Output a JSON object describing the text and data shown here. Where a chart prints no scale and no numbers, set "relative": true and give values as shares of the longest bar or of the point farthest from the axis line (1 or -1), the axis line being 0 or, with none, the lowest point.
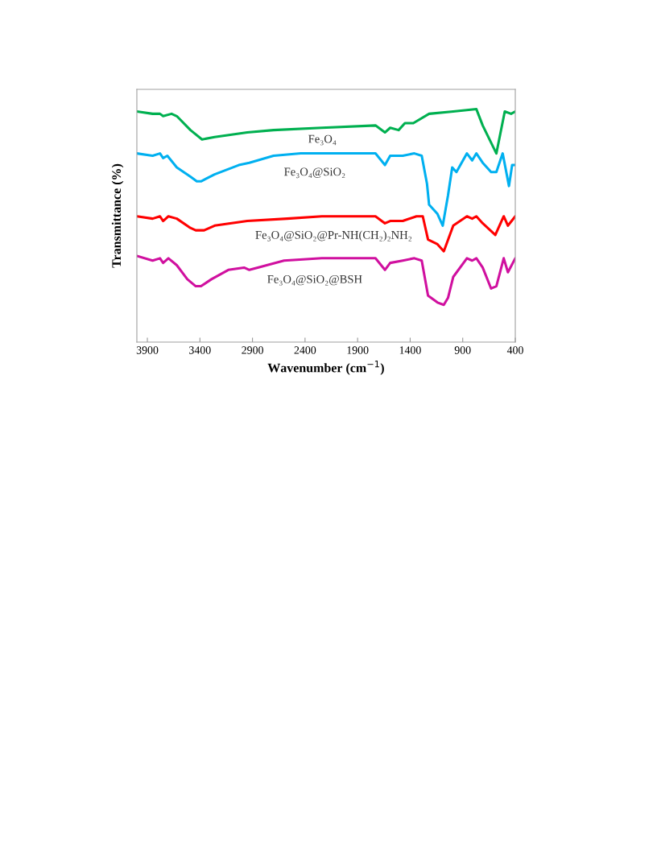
{
  "chart_data": {
    "type": "line",
    "relative": true,
    "xlabel": "Wavenumber (cm$^{−1}$)",
    "ylabel": "Transmittance (%)",
    "xlim": [
      4000,
      400
    ],
    "xticks": [
      3900,
      3400,
      2900,
      2400,
      1900,
      1400,
      900,
      400
    ],
    "grid": false,
    "legend": false,
    "marker": "none",
    "line_style": "solid",
    "series": [
      {
        "name": "Fe₃O₄",
        "color": "#00b050",
        "x": [
          4000,
          3850,
          3780,
          3750,
          3670,
          3620,
          3490,
          3380,
          3260,
          2950,
          2700,
          2240,
          1730,
          1640,
          1590,
          1510,
          1450,
          1370,
          1220,
          990,
          770,
          710,
          580,
          500,
          440,
          400
        ],
        "values": [
          0.99,
          0.98,
          0.98,
          0.97,
          0.98,
          0.97,
          0.91,
          0.87,
          0.88,
          0.9,
          0.91,
          0.92,
          0.93,
          0.9,
          0.92,
          0.91,
          0.94,
          0.94,
          0.98,
          0.99,
          1.0,
          0.93,
          0.81,
          0.99,
          0.98,
          0.99
        ]
      },
      {
        "name": "Fe₃O₄@SiO₂",
        "color": "#00b0f0",
        "x": [
          4000,
          3850,
          3780,
          3750,
          3710,
          3620,
          3490,
          3430,
          3390,
          3260,
          3030,
          2930,
          2700,
          2440,
          2240,
          1730,
          1640,
          1590,
          1470,
          1360,
          1290,
          1240,
          1220,
          1140,
          1090,
          1040,
          1000,
          960,
          860,
          810,
          770,
          710,
          630,
          580,
          520,
          460,
          430,
          400
        ],
        "values": [
          0.81,
          0.8,
          0.81,
          0.79,
          0.8,
          0.75,
          0.71,
          0.69,
          0.69,
          0.72,
          0.76,
          0.77,
          0.8,
          0.81,
          0.81,
          0.81,
          0.76,
          0.8,
          0.8,
          0.81,
          0.8,
          0.68,
          0.59,
          0.55,
          0.5,
          0.63,
          0.75,
          0.73,
          0.81,
          0.78,
          0.81,
          0.77,
          0.73,
          0.73,
          0.81,
          0.67,
          0.76,
          0.76
        ]
      },
      {
        "name": "Fe₃O₄@SiO₂@Pr-NH(CH₂)₂NH₂",
        "color": "#ff0000",
        "x": [
          4000,
          3850,
          3780,
          3750,
          3700,
          3620,
          3490,
          3440,
          3360,
          3260,
          2950,
          2570,
          2240,
          1730,
          1640,
          1590,
          1470,
          1340,
          1280,
          1230,
          1140,
          1080,
          990,
          860,
          810,
          770,
          710,
          590,
          510,
          470,
          400
        ],
        "values": [
          0.54,
          0.53,
          0.54,
          0.52,
          0.54,
          0.53,
          0.49,
          0.48,
          0.48,
          0.5,
          0.52,
          0.53,
          0.54,
          0.54,
          0.51,
          0.52,
          0.52,
          0.54,
          0.54,
          0.44,
          0.42,
          0.39,
          0.5,
          0.54,
          0.53,
          0.54,
          0.51,
          0.46,
          0.54,
          0.5,
          0.54
        ]
      },
      {
        "name": "Fe₃O₄@SiO₂@BSH",
        "color": "#d0109f",
        "x": [
          4000,
          3850,
          3780,
          3750,
          3700,
          3620,
          3520,
          3440,
          3390,
          3290,
          3130,
          2980,
          2930,
          2850,
          2600,
          2240,
          1730,
          1640,
          1590,
          1470,
          1360,
          1290,
          1230,
          1140,
          1080,
          1040,
          990,
          860,
          810,
          770,
          710,
          630,
          580,
          510,
          470,
          400
        ],
        "values": [
          0.37,
          0.35,
          0.36,
          0.34,
          0.36,
          0.33,
          0.27,
          0.24,
          0.24,
          0.27,
          0.31,
          0.32,
          0.31,
          0.32,
          0.35,
          0.36,
          0.36,
          0.31,
          0.34,
          0.35,
          0.36,
          0.35,
          0.2,
          0.17,
          0.16,
          0.19,
          0.28,
          0.36,
          0.35,
          0.36,
          0.32,
          0.23,
          0.24,
          0.36,
          0.3,
          0.36
        ]
      }
    ]
  }
}
